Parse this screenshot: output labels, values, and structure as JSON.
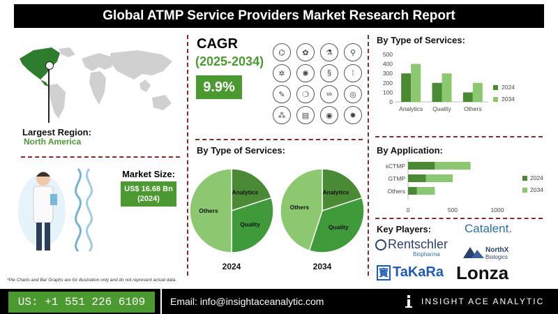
{
  "header": {
    "title": "Global ATMP Service Providers Market Research Report"
  },
  "region": {
    "label": "Largest Region:",
    "value": "North America"
  },
  "market_size": {
    "label": "Market Size:",
    "value": "US$ 16.68 Bn",
    "year": "(2024)"
  },
  "cagr": {
    "title": "CAGR",
    "years": "(2025-2034)",
    "value": "9.9%"
  },
  "sections": {
    "bar_title": "By Type of Services:",
    "pie_title": "By Type of Services:",
    "app_title": "By Application:",
    "players_title": "Key Players:"
  },
  "players": {
    "catalent": "Catalent.",
    "rentschler": "Rentschler",
    "rentschler_sub": "Biopharma",
    "northx": "NorthX",
    "northx_sub": "Biologics",
    "takara": "TaKaRa",
    "lonza": "Lonza"
  },
  "note": "*Pie Charts and Bar Graphs are for illustration only and do not represent actual data.",
  "footer": {
    "phone": "US: +1 551 226 6109",
    "email": "Email: info@insightaceanalytic.com",
    "brand": "INSIGHT ACE ANALYTIC"
  },
  "colors": {
    "dark_green": "#4a8a34",
    "light_green": "#8cc870",
    "accent": "#4a9a30",
    "divider": "#8b2a24"
  },
  "chart_data": [
    {
      "type": "bar",
      "title": "By Type of Services:",
      "categories": [
        "Analytics",
        "Quality",
        "Others"
      ],
      "series": [
        {
          "name": "2024",
          "values": [
            300,
            200,
            100
          ]
        },
        {
          "name": "2034",
          "values": [
            400,
            300,
            200
          ]
        }
      ],
      "ylim": [
        0,
        500
      ],
      "yticks": [
        0,
        100,
        200,
        300,
        400,
        500
      ],
      "legend": "right"
    },
    {
      "type": "bar",
      "orientation": "horizontal",
      "stacked": true,
      "title": "By Application:",
      "categories": [
        "sCTMP",
        "GTMP",
        "Others"
      ],
      "series": [
        {
          "name": "2024",
          "values": [
            300,
            200,
            100
          ]
        },
        {
          "name": "2034",
          "values": [
            400,
            300,
            200
          ]
        }
      ],
      "xlim": [
        0,
        1000
      ],
      "xticks": [
        0,
        500,
        1000
      ],
      "legend": "right"
    },
    {
      "type": "pie",
      "year": "2024",
      "slices": [
        {
          "label": "Analytics",
          "value": 20
        },
        {
          "label": "Quality",
          "value": 30
        },
        {
          "label": "Others",
          "value": 50
        }
      ]
    },
    {
      "type": "pie",
      "year": "2034",
      "slices": [
        {
          "label": "Analytics",
          "value": 20
        },
        {
          "label": "Quality",
          "value": 35
        },
        {
          "label": "Others",
          "value": 45
        }
      ]
    }
  ]
}
